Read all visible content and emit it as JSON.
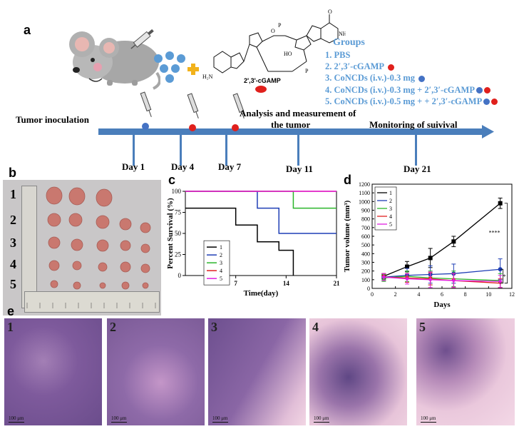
{
  "figure": {
    "panel_a": {
      "letter": "a",
      "molecule_label": "2',3'-cGAMP",
      "groups_title": "Groups",
      "groups": [
        {
          "label": "1.  PBS",
          "dots": []
        },
        {
          "label": "2.  2′,3′-cGAMP",
          "dots": [
            "#e0201c"
          ]
        },
        {
          "label": "3.  CoNCDs (i.v.)-0.3  mg",
          "dots": [
            "#4472c4"
          ]
        },
        {
          "label": "4.  CoNCDs (i.v.)-0.3  mg + 2′,3′-cGAMP",
          "dots": [
            "#4472c4",
            "#e0201c"
          ]
        },
        {
          "label": "5.  CoNCDs (i.v.)-0.5  mg + + 2′,3′-cGAMP",
          "dots": [
            "#4472c4",
            "#e0201c"
          ]
        }
      ],
      "tumor_inoculation": "Tumor inoculation",
      "analysis": "Analysis and measurement of",
      "analysis2": "the tumor",
      "monitoring": "Monitoring of suivival",
      "days": [
        "Day 1",
        "Day 4",
        "Day 7",
        "Day 11",
        "Day 21"
      ],
      "colors": {
        "timeline": "#4a7ebb",
        "groups": "#5b9bd5",
        "cgamp": "#e0201c",
        "concd": "#4472c4",
        "plus": "#f2b21b"
      }
    },
    "panel_b": {
      "letter": "b",
      "rows": [
        "1",
        "2",
        "3",
        "4",
        "5"
      ],
      "tumor_counts": [
        3,
        5,
        5,
        5,
        5
      ]
    },
    "panel_c": {
      "letter": "c"
    },
    "panel_d": {
      "letter": "d"
    },
    "panel_e": {
      "letter": "e",
      "labels": [
        "1",
        "2",
        "3",
        "4",
        "5"
      ],
      "scale": [
        "100 μm",
        "100 μm",
        "100 μm",
        "100 μm",
        "100 μm"
      ]
    }
  },
  "chart_data": [
    {
      "type": "line",
      "chart": "survival",
      "xlabel": "Time(day)",
      "ylabel": "Percent Survival (%)",
      "xlim": [
        0,
        21
      ],
      "ylim": [
        0,
        100
      ],
      "xticks": [
        7,
        14,
        21
      ],
      "yticks": [
        0,
        25,
        50,
        75,
        100
      ],
      "legend_position": "bottom-left",
      "series": [
        {
          "name": "1",
          "color": "#000000",
          "steps": [
            [
              0,
              80
            ],
            [
              7,
              60
            ],
            [
              10,
              40
            ],
            [
              13,
              30
            ],
            [
              15,
              0
            ]
          ]
        },
        {
          "name": "2",
          "color": "#1f3fb5",
          "steps": [
            [
              0,
              100
            ],
            [
              10,
              80
            ],
            [
              13,
              50
            ],
            [
              21,
              50
            ]
          ]
        },
        {
          "name": "3",
          "color": "#2bb52b",
          "steps": [
            [
              0,
              100
            ],
            [
              15,
              80
            ],
            [
              21,
              80
            ]
          ]
        },
        {
          "name": "4",
          "color": "#e02020",
          "steps": [
            [
              0,
              100
            ],
            [
              21,
              100
            ]
          ]
        },
        {
          "name": "5",
          "color": "#e020e0",
          "steps": [
            [
              0,
              100
            ],
            [
              21,
              100
            ]
          ]
        }
      ]
    },
    {
      "type": "line",
      "chart": "tumor_volume",
      "xlabel": "Days",
      "ylabel": "Tumor volume (mm³)",
      "xlim": [
        0,
        12
      ],
      "ylim": [
        0,
        1200
      ],
      "xticks": [
        0,
        2,
        4,
        6,
        8,
        10,
        12
      ],
      "yticks": [
        0,
        100,
        200,
        300,
        400,
        500,
        600,
        700,
        800,
        900,
        1000,
        1100,
        1200
      ],
      "legend_position": "top-left",
      "annotations": [
        "****",
        "*"
      ],
      "x": [
        1,
        3,
        5,
        7,
        11
      ],
      "series": [
        {
          "name": "1",
          "color": "#000000",
          "marker": "square",
          "values": [
            140,
            250,
            350,
            540,
            980
          ],
          "errors": [
            30,
            60,
            110,
            60,
            60
          ]
        },
        {
          "name": "2",
          "color": "#1f3fb5",
          "marker": "circle",
          "values": [
            130,
            150,
            160,
            170,
            220
          ],
          "errors": [
            30,
            80,
            100,
            110,
            120
          ]
        },
        {
          "name": "3",
          "color": "#2bb52b",
          "marker": "triangle",
          "values": [
            120,
            140,
            120,
            110,
            90
          ],
          "errors": [
            40,
            60,
            80,
            90,
            80
          ]
        },
        {
          "name": "4",
          "color": "#e02020",
          "marker": "triangle-down",
          "values": [
            130,
            120,
            110,
            90,
            60
          ],
          "errors": [
            40,
            50,
            70,
            80,
            50
          ]
        },
        {
          "name": "5",
          "color": "#e020e0",
          "marker": "diamond",
          "values": [
            130,
            110,
            100,
            90,
            80
          ],
          "errors": [
            40,
            60,
            90,
            80,
            70
          ]
        }
      ]
    }
  ]
}
